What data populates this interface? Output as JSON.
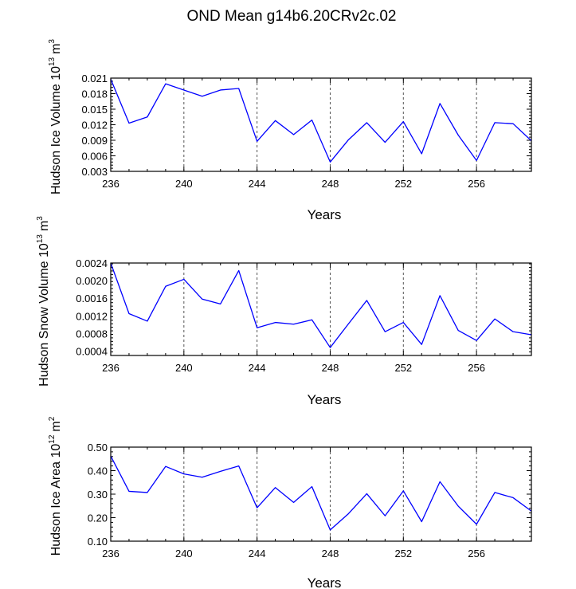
{
  "title": "OND Mean g14b6.20CRv2c.02",
  "colors": {
    "line": "#0000ff",
    "axis": "#000000",
    "grid": "#555555"
  },
  "chart_data": [
    {
      "type": "line",
      "ylabel": "Hudson Ice Volume 10",
      "yexp": "13",
      "yunit": "m",
      "yunit_exp": "3",
      "xlabel": "Years",
      "xlim": [
        236,
        259
      ],
      "ylim": [
        0.003,
        0.021
      ],
      "yticks": [
        0.003,
        0.006,
        0.009,
        0.012,
        0.015,
        0.018,
        0.021
      ],
      "yticklabels": [
        "0.003",
        "0.006",
        "0.009",
        "0.012",
        "0.015",
        "0.018",
        "0.021"
      ],
      "xticks": [
        236,
        240,
        244,
        248,
        252,
        256
      ],
      "xticklabels": [
        "236",
        "240",
        "244",
        "248",
        "252",
        "256"
      ],
      "grid_x": [
        240,
        244,
        248,
        252,
        256
      ],
      "x": [
        236,
        237,
        238,
        239,
        240,
        241,
        242,
        243,
        244,
        245,
        246,
        247,
        248,
        249,
        250,
        251,
        252,
        253,
        254,
        255,
        256,
        257,
        258,
        259
      ],
      "values": [
        0.0208,
        0.0123,
        0.0135,
        0.0199,
        0.0187,
        0.0175,
        0.0187,
        0.019,
        0.0088,
        0.0128,
        0.0101,
        0.0129,
        0.0048,
        0.0091,
        0.0124,
        0.0086,
        0.0126,
        0.0064,
        0.0161,
        0.01,
        0.0051,
        0.0124,
        0.0122,
        0.0089
      ]
    },
    {
      "type": "line",
      "ylabel": "Hudson Snow Volume 10",
      "yexp": "13",
      "yunit": "m",
      "yunit_exp": "3",
      "xlabel": "Years",
      "xlim": [
        236,
        259
      ],
      "ylim": [
        0.0003,
        0.0024
      ],
      "yticks": [
        0.0004,
        0.0008,
        0.0012,
        0.0016,
        0.002,
        0.0024
      ],
      "yticklabels": [
        "0.0004",
        "0.0008",
        "0.0012",
        "0.0016",
        "0.0020",
        "0.0024"
      ],
      "xticks": [
        236,
        240,
        244,
        248,
        252,
        256
      ],
      "xticklabels": [
        "236",
        "240",
        "244",
        "248",
        "252",
        "256"
      ],
      "grid_x": [
        240,
        244,
        248,
        252,
        256
      ],
      "x": [
        236,
        237,
        238,
        239,
        240,
        241,
        242,
        243,
        244,
        245,
        246,
        247,
        248,
        249,
        250,
        251,
        252,
        253,
        254,
        255,
        256,
        257,
        258,
        259
      ],
      "values": [
        0.0024,
        0.00125,
        0.00108,
        0.00187,
        0.00203,
        0.00158,
        0.00147,
        0.00223,
        0.00093,
        0.00105,
        0.00101,
        0.00111,
        0.00048,
        0.00102,
        0.00155,
        0.00084,
        0.00105,
        0.00055,
        0.00166,
        0.00087,
        0.00064,
        0.00113,
        0.00084,
        0.00077
      ]
    },
    {
      "type": "line",
      "ylabel": "Hudson Ice Area 10",
      "yexp": "12",
      "yunit": "m",
      "yunit_exp": "2",
      "xlabel": "Years",
      "xlim": [
        236,
        259
      ],
      "ylim": [
        0.1,
        0.5
      ],
      "yticks": [
        0.1,
        0.2,
        0.3,
        0.4,
        0.5
      ],
      "yticklabels": [
        "0.10",
        "0.20",
        "0.30",
        "0.40",
        "0.50"
      ],
      "xticks": [
        236,
        240,
        244,
        248,
        252,
        256
      ],
      "xticklabels": [
        "236",
        "240",
        "244",
        "248",
        "252",
        "256"
      ],
      "grid_x": [
        240,
        244,
        248,
        252,
        256
      ],
      "x": [
        236,
        237,
        238,
        239,
        240,
        241,
        242,
        243,
        244,
        245,
        246,
        247,
        248,
        249,
        250,
        251,
        252,
        253,
        254,
        255,
        256,
        257,
        258,
        259
      ],
      "values": [
        0.462,
        0.312,
        0.307,
        0.418,
        0.386,
        0.372,
        0.397,
        0.42,
        0.242,
        0.328,
        0.265,
        0.332,
        0.148,
        0.217,
        0.302,
        0.208,
        0.314,
        0.183,
        0.353,
        0.249,
        0.172,
        0.307,
        0.285,
        0.228
      ]
    }
  ]
}
